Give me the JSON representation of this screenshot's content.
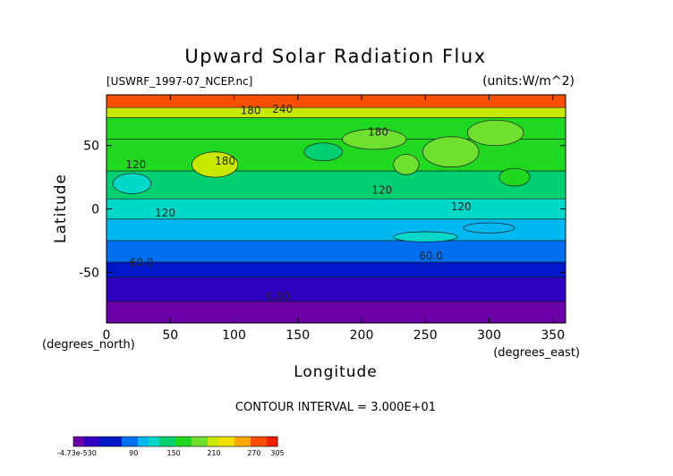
{
  "chart_data": {
    "type": "heatmap",
    "title": "Upward Solar Radiation Flux",
    "source_file": "[USWRF_1997-07_NCEP.nc]",
    "units_label": "(units:W/m^2)",
    "xlabel": "Longitude",
    "ylabel": "Latitude",
    "x_units": "(degrees_east)",
    "y_units": "(degrees_north)",
    "xlim": [
      0,
      360
    ],
    "ylim": [
      -90,
      90
    ],
    "x_ticks": [
      0,
      50,
      100,
      150,
      200,
      250,
      300,
      350
    ],
    "y_ticks": [
      -50,
      0,
      50
    ],
    "contour_interval_text": "CONTOUR INTERVAL = 3.000E+01",
    "contour_labels": [
      {
        "text": "180",
        "lon": 105,
        "lat": 75
      },
      {
        "text": "240",
        "lon": 130,
        "lat": 76
      },
      {
        "text": "180",
        "lon": 205,
        "lat": 58
      },
      {
        "text": "120",
        "lon": 15,
        "lat": 32
      },
      {
        "text": "180",
        "lon": 85,
        "lat": 35
      },
      {
        "text": "120",
        "lon": 208,
        "lat": 12
      },
      {
        "text": "120",
        "lon": 270,
        "lat": -1
      },
      {
        "text": "120",
        "lon": 38,
        "lat": -6
      },
      {
        "text": "60.0",
        "lon": 18,
        "lat": -45
      },
      {
        "text": "60.0",
        "lon": 245,
        "lat": -40
      },
      {
        "text": "0.00",
        "lon": 125,
        "lat": -72
      }
    ],
    "colorbar": {
      "tick_labels": [
        "-4.73e-530",
        "90",
        "150",
        "210",
        "270",
        "305"
      ],
      "tick_values": [
        0,
        90,
        150,
        210,
        270,
        305
      ],
      "min": 0,
      "max": 305
    },
    "lat_bands": [
      {
        "lat_min": -90,
        "lat_max": -73,
        "value": 10
      },
      {
        "lat_min": -73,
        "lat_max": -54,
        "value": 30
      },
      {
        "lat_min": -54,
        "lat_max": -42,
        "value": 60
      },
      {
        "lat_min": -42,
        "lat_max": -25,
        "value": 85
      },
      {
        "lat_min": -25,
        "lat_max": -8,
        "value": 105
      },
      {
        "lat_min": -8,
        "lat_max": 8,
        "value": 120
      },
      {
        "lat_min": 8,
        "lat_max": 30,
        "value": 140
      },
      {
        "lat_min": 30,
        "lat_max": 55,
        "value": 155
      },
      {
        "lat_min": 55,
        "lat_max": 72,
        "value": 165
      },
      {
        "lat_min": 72,
        "lat_max": 80,
        "value": 200
      },
      {
        "lat_min": 80,
        "lat_max": 90,
        "value": 275
      }
    ],
    "features": [
      {
        "lon": 85,
        "lat": 35,
        "rlon": 18,
        "rlat": 10,
        "value": 205
      },
      {
        "lon": 210,
        "lat": 55,
        "rlon": 25,
        "rlat": 8,
        "value": 190
      },
      {
        "lon": 270,
        "lat": 45,
        "rlon": 22,
        "rlat": 12,
        "value": 185
      },
      {
        "lon": 235,
        "lat": 35,
        "rlon": 10,
        "rlat": 8,
        "value": 190
      },
      {
        "lon": 305,
        "lat": 60,
        "rlon": 22,
        "rlat": 10,
        "value": 180
      },
      {
        "lon": 20,
        "lat": 20,
        "rlon": 15,
        "rlat": 8,
        "value": 115
      },
      {
        "lon": 170,
        "lat": 45,
        "rlon": 15,
        "rlat": 7,
        "value": 130
      },
      {
        "lon": 320,
        "lat": 25,
        "rlon": 12,
        "rlat": 7,
        "value": 165
      },
      {
        "lon": 250,
        "lat": -22,
        "rlon": 25,
        "rlat": 4,
        "value": 115
      },
      {
        "lon": 300,
        "lat": -15,
        "rlon": 20,
        "rlat": 4,
        "value": 110
      }
    ]
  }
}
